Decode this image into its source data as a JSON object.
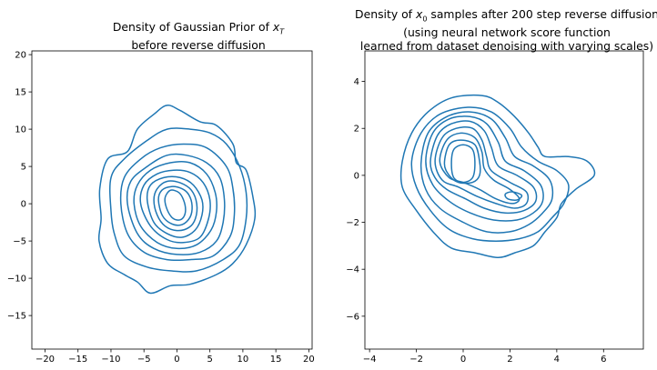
{
  "chart_data": [
    {
      "type": "contour",
      "title_lines": [
        "Density of Gaussian Prior of x_T",
        "before reverse diffusion"
      ],
      "title_math": {
        "base": "x",
        "sub": "T"
      },
      "xlabel": "",
      "ylabel": "",
      "xlim": [
        -22,
        20.5
      ],
      "ylim": [
        -19.5,
        20.5
      ],
      "xticks": [
        -20,
        -15,
        -10,
        -5,
        0,
        5,
        10,
        15,
        20
      ],
      "yticks": [
        -15,
        -10,
        -5,
        0,
        5,
        10,
        15,
        20
      ],
      "levels": 10,
      "line_color": "#1f77b4",
      "grid": false,
      "contours": [
        [
          [
            -11.5,
            -2
          ],
          [
            -11.7,
            2
          ],
          [
            -10.5,
            6
          ],
          [
            -7.5,
            7
          ],
          [
            -6,
            10
          ],
          [
            -3.5,
            12
          ],
          [
            -1.5,
            13.2
          ],
          [
            0.5,
            12.5
          ],
          [
            3.5,
            11
          ],
          [
            6,
            10.5
          ],
          [
            8.5,
            8
          ],
          [
            9,
            5.5
          ],
          [
            10.5,
            4.5
          ],
          [
            11.5,
            1
          ],
          [
            11.8,
            -2
          ],
          [
            10.5,
            -5.5
          ],
          [
            8.5,
            -8
          ],
          [
            6,
            -9.5
          ],
          [
            2,
            -10.8
          ],
          [
            -1,
            -11
          ],
          [
            -4,
            -12
          ],
          [
            -6,
            -10.5
          ],
          [
            -8,
            -9.5
          ],
          [
            -10.5,
            -8
          ],
          [
            -11.8,
            -5
          ],
          [
            -11.5,
            -2
          ]
        ],
        [
          [
            -10,
            -1
          ],
          [
            -10,
            3.5
          ],
          [
            -8,
            6
          ],
          [
            -4.5,
            8.5
          ],
          [
            -1.5,
            10
          ],
          [
            2,
            10
          ],
          [
            5,
            9.5
          ],
          [
            7.5,
            8
          ],
          [
            9.5,
            5
          ],
          [
            10.5,
            1.5
          ],
          [
            10.5,
            -2
          ],
          [
            9.5,
            -5.5
          ],
          [
            7,
            -7.5
          ],
          [
            3,
            -9
          ],
          [
            -1,
            -9
          ],
          [
            -4.5,
            -8.5
          ],
          [
            -8,
            -7
          ],
          [
            -9.5,
            -4
          ],
          [
            -10,
            -1
          ]
        ],
        [
          [
            -8.5,
            0
          ],
          [
            -8,
            3.5
          ],
          [
            -5.5,
            6
          ],
          [
            -2.5,
            7.5
          ],
          [
            1,
            8
          ],
          [
            4.5,
            7.5
          ],
          [
            7.5,
            5
          ],
          [
            8.5,
            2
          ],
          [
            8.7,
            -1.5
          ],
          [
            8,
            -4.5
          ],
          [
            5.5,
            -7
          ],
          [
            2,
            -7.5
          ],
          [
            -1.5,
            -7.5
          ],
          [
            -5,
            -6.5
          ],
          [
            -7.5,
            -4
          ],
          [
            -8.5,
            0
          ]
        ],
        [
          [
            -7.5,
            0
          ],
          [
            -7,
            3
          ],
          [
            -4.5,
            5
          ],
          [
            -1.5,
            6.5
          ],
          [
            1.5,
            6.5
          ],
          [
            4.5,
            5.5
          ],
          [
            6.5,
            3.5
          ],
          [
            7.2,
            0.5
          ],
          [
            7,
            -2.5
          ],
          [
            6,
            -5
          ],
          [
            3.5,
            -6.5
          ],
          [
            0,
            -6.8
          ],
          [
            -3.5,
            -6
          ],
          [
            -6,
            -4
          ],
          [
            -7.5,
            0
          ]
        ],
        [
          [
            -6.5,
            0
          ],
          [
            -6,
            2.5
          ],
          [
            -4,
            4.5
          ],
          [
            -1,
            5.5
          ],
          [
            2,
            5.5
          ],
          [
            4.5,
            4
          ],
          [
            5.8,
            1.5
          ],
          [
            6,
            -1
          ],
          [
            5.2,
            -3.5
          ],
          [
            3,
            -5.5
          ],
          [
            0,
            -6
          ],
          [
            -3,
            -5.2
          ],
          [
            -5.5,
            -3
          ],
          [
            -6.5,
            0
          ]
        ],
        [
          [
            -5.5,
            0
          ],
          [
            -5,
            2.5
          ],
          [
            -3,
            4
          ],
          [
            -0.5,
            4.5
          ],
          [
            2,
            4.2
          ],
          [
            4,
            2.8
          ],
          [
            5,
            0.5
          ],
          [
            4.8,
            -2
          ],
          [
            3.5,
            -4.5
          ],
          [
            1,
            -5.2
          ],
          [
            -1.5,
            -4.8
          ],
          [
            -4,
            -3
          ],
          [
            -5.5,
            0
          ]
        ],
        [
          [
            -4.5,
            0.5
          ],
          [
            -4,
            2.5
          ],
          [
            -2,
            3.5
          ],
          [
            0.5,
            3.5
          ],
          [
            2.5,
            2.5
          ],
          [
            3.8,
            0.5
          ],
          [
            3.8,
            -1.5
          ],
          [
            2.8,
            -3.5
          ],
          [
            0.8,
            -4.5
          ],
          [
            -1.5,
            -4
          ],
          [
            -3.5,
            -2.5
          ],
          [
            -4.5,
            0.5
          ]
        ],
        [
          [
            -3.5,
            0.5
          ],
          [
            -3,
            2
          ],
          [
            -1.5,
            3
          ],
          [
            0.5,
            2.8
          ],
          [
            2.2,
            1.8
          ],
          [
            3,
            0
          ],
          [
            2.8,
            -2
          ],
          [
            1.8,
            -3.2
          ],
          [
            0,
            -3.6
          ],
          [
            -1.8,
            -3
          ],
          [
            -3,
            -1.5
          ],
          [
            -3.5,
            0.5
          ]
        ],
        [
          [
            -2.8,
            0.5
          ],
          [
            -2.3,
            1.8
          ],
          [
            -0.8,
            2.3
          ],
          [
            0.8,
            2
          ],
          [
            1.8,
            1.2
          ],
          [
            2.3,
            -0.3
          ],
          [
            2,
            -1.8
          ],
          [
            0.8,
            -2.8
          ],
          [
            -0.8,
            -2.7
          ],
          [
            -2.2,
            -1.6
          ],
          [
            -2.8,
            0.5
          ]
        ],
        [
          [
            -1.8,
            0.8
          ],
          [
            -1,
            1.8
          ],
          [
            0.3,
            1.5
          ],
          [
            1,
            0.5
          ],
          [
            1.3,
            -0.8
          ],
          [
            1,
            -1.8
          ],
          [
            0.2,
            -2.2
          ],
          [
            -0.8,
            -1.8
          ],
          [
            -1.6,
            -0.5
          ],
          [
            -1.8,
            0.8
          ]
        ]
      ]
    },
    {
      "type": "contour",
      "title_lines": [
        "Density of x_0 samples after 200 step reverse diffusion",
        "(using neural network score function",
        "learned from dataset denoising with varying scales)"
      ],
      "title_math": {
        "base": "x",
        "sub": "0"
      },
      "xlabel": "",
      "ylabel": "",
      "xlim": [
        -4.2,
        7.7
      ],
      "ylim": [
        -7.4,
        5.3
      ],
      "xticks": [
        -4,
        -2,
        0,
        2,
        4,
        6
      ],
      "yticks": [
        -6,
        -4,
        -2,
        0,
        2,
        4
      ],
      "levels": 10,
      "line_color": "#1f77b4",
      "grid": false,
      "contours": [
        [
          [
            -2.6,
            0.6
          ],
          [
            -2.2,
            1.8
          ],
          [
            -1.5,
            2.7
          ],
          [
            -0.5,
            3.3
          ],
          [
            0.8,
            3.4
          ],
          [
            1.5,
            3.1
          ],
          [
            2.2,
            2.5
          ],
          [
            2.8,
            1.8
          ],
          [
            3.2,
            1.2
          ],
          [
            3.5,
            0.8
          ],
          [
            4.5,
            0.8
          ],
          [
            5.3,
            0.6
          ],
          [
            5.6,
            0
          ],
          [
            4.8,
            -0.6
          ],
          [
            4.2,
            -1.2
          ],
          [
            4,
            -1.8
          ],
          [
            3.5,
            -2.4
          ],
          [
            3,
            -3
          ],
          [
            2.2,
            -3.3
          ],
          [
            1.5,
            -3.5
          ],
          [
            0.5,
            -3.3
          ],
          [
            -0.5,
            -3.1
          ],
          [
            -1.2,
            -2.5
          ],
          [
            -2,
            -1.5
          ],
          [
            -2.6,
            -0.5
          ],
          [
            -2.6,
            0.6
          ]
        ],
        [
          [
            -2.2,
            0.6
          ],
          [
            -1.8,
            1.8
          ],
          [
            -1,
            2.6
          ],
          [
            0.2,
            2.9
          ],
          [
            1.2,
            2.7
          ],
          [
            2,
            2
          ],
          [
            2.5,
            1.2
          ],
          [
            3.2,
            0.6
          ],
          [
            4,
            0.2
          ],
          [
            4.5,
            -0.4
          ],
          [
            4.3,
            -1.2
          ],
          [
            3.8,
            -1.8
          ],
          [
            3.2,
            -2.4
          ],
          [
            2.4,
            -2.7
          ],
          [
            1.4,
            -2.8
          ],
          [
            0.4,
            -2.7
          ],
          [
            -0.6,
            -2.3
          ],
          [
            -1.4,
            -1.5
          ],
          [
            -2,
            -0.5
          ],
          [
            -2.2,
            0.6
          ]
        ],
        [
          [
            -1.8,
            0.5
          ],
          [
            -1.5,
            1.8
          ],
          [
            -0.7,
            2.5
          ],
          [
            0.3,
            2.7
          ],
          [
            1.2,
            2.4
          ],
          [
            1.8,
            1.6
          ],
          [
            2.2,
            0.8
          ],
          [
            3,
            0.4
          ],
          [
            3.7,
            -0.2
          ],
          [
            3.8,
            -1
          ],
          [
            3.4,
            -1.6
          ],
          [
            2.8,
            -2.1
          ],
          [
            2,
            -2.4
          ],
          [
            1,
            -2.4
          ],
          [
            0,
            -2
          ],
          [
            -1,
            -1.4
          ],
          [
            -1.6,
            -0.6
          ],
          [
            -1.8,
            0.5
          ]
        ],
        [
          [
            -1.6,
            0.6
          ],
          [
            -1.3,
            1.8
          ],
          [
            -0.6,
            2.4
          ],
          [
            0.3,
            2.5
          ],
          [
            1,
            2.2
          ],
          [
            1.5,
            1.4
          ],
          [
            1.8,
            0.6
          ],
          [
            2.6,
            0.2
          ],
          [
            3.3,
            -0.4
          ],
          [
            3.4,
            -1.1
          ],
          [
            3,
            -1.6
          ],
          [
            2.3,
            -1.9
          ],
          [
            1.3,
            -1.9
          ],
          [
            0.3,
            -1.6
          ],
          [
            -0.6,
            -1.1
          ],
          [
            -1.3,
            -0.4
          ],
          [
            -1.6,
            0.6
          ]
        ],
        [
          [
            -1.4,
            0.6
          ],
          [
            -1.1,
            1.7
          ],
          [
            -0.5,
            2.2
          ],
          [
            0.3,
            2.3
          ],
          [
            0.9,
            1.9
          ],
          [
            1.2,
            1.2
          ],
          [
            1.5,
            0.4
          ],
          [
            2.3,
            0
          ],
          [
            3,
            -0.5
          ],
          [
            3.1,
            -1.1
          ],
          [
            2.6,
            -1.5
          ],
          [
            1.8,
            -1.6
          ],
          [
            0.9,
            -1.4
          ],
          [
            0.1,
            -1
          ],
          [
            -0.7,
            -0.6
          ],
          [
            -1.2,
            -0.1
          ],
          [
            -1.4,
            0.6
          ]
        ],
        [
          [
            -1.2,
            0.6
          ],
          [
            -0.9,
            1.6
          ],
          [
            -0.3,
            2
          ],
          [
            0.4,
            2
          ],
          [
            0.8,
            1.5
          ],
          [
            1,
            0.8
          ],
          [
            1.2,
            0.2
          ],
          [
            2,
            -0.3
          ],
          [
            2.7,
            -0.7
          ],
          [
            2.7,
            -1.2
          ],
          [
            2.2,
            -1.4
          ],
          [
            1.4,
            -1.2
          ],
          [
            0.6,
            -0.9
          ],
          [
            -0.2,
            -0.5
          ],
          [
            -0.9,
            -0.2
          ],
          [
            -1.2,
            0.6
          ]
        ],
        [
          [
            -1,
            0.6
          ],
          [
            -0.7,
            1.5
          ],
          [
            -0.1,
            1.8
          ],
          [
            0.5,
            1.6
          ],
          [
            0.8,
            1
          ],
          [
            0.9,
            0.3
          ],
          [
            1.3,
            -0.2
          ],
          [
            2,
            -0.6
          ],
          [
            2.4,
            -1
          ],
          [
            2.1,
            -1.2
          ],
          [
            1.4,
            -1
          ],
          [
            0.7,
            -0.6
          ],
          [
            0,
            -0.3
          ],
          [
            -0.6,
            -0.1
          ],
          [
            -1,
            0.6
          ]
        ],
        [
          [
            -0.8,
            0.5
          ],
          [
            -0.6,
            1.3
          ],
          [
            -0.1,
            1.5
          ],
          [
            0.5,
            1.3
          ],
          [
            0.7,
            0.6
          ],
          [
            0.7,
            0
          ],
          [
            0.4,
            -0.3
          ],
          [
            -0.2,
            -0.3
          ],
          [
            -0.6,
            0
          ],
          [
            -0.8,
            0.5
          ]
        ],
        [
          [
            -0.5,
            0.5
          ],
          [
            -0.4,
            1.1
          ],
          [
            0,
            1.3
          ],
          [
            0.4,
            1.1
          ],
          [
            0.5,
            0.5
          ],
          [
            0.4,
            -0.1
          ],
          [
            0,
            -0.3
          ],
          [
            -0.4,
            -0.1
          ],
          [
            -0.5,
            0.5
          ]
        ],
        [
          [
            1.8,
            -0.8
          ],
          [
            2.1,
            -0.7
          ],
          [
            2.5,
            -0.85
          ],
          [
            2.3,
            -1.05
          ],
          [
            1.9,
            -1
          ],
          [
            1.8,
            -0.8
          ]
        ]
      ]
    }
  ]
}
